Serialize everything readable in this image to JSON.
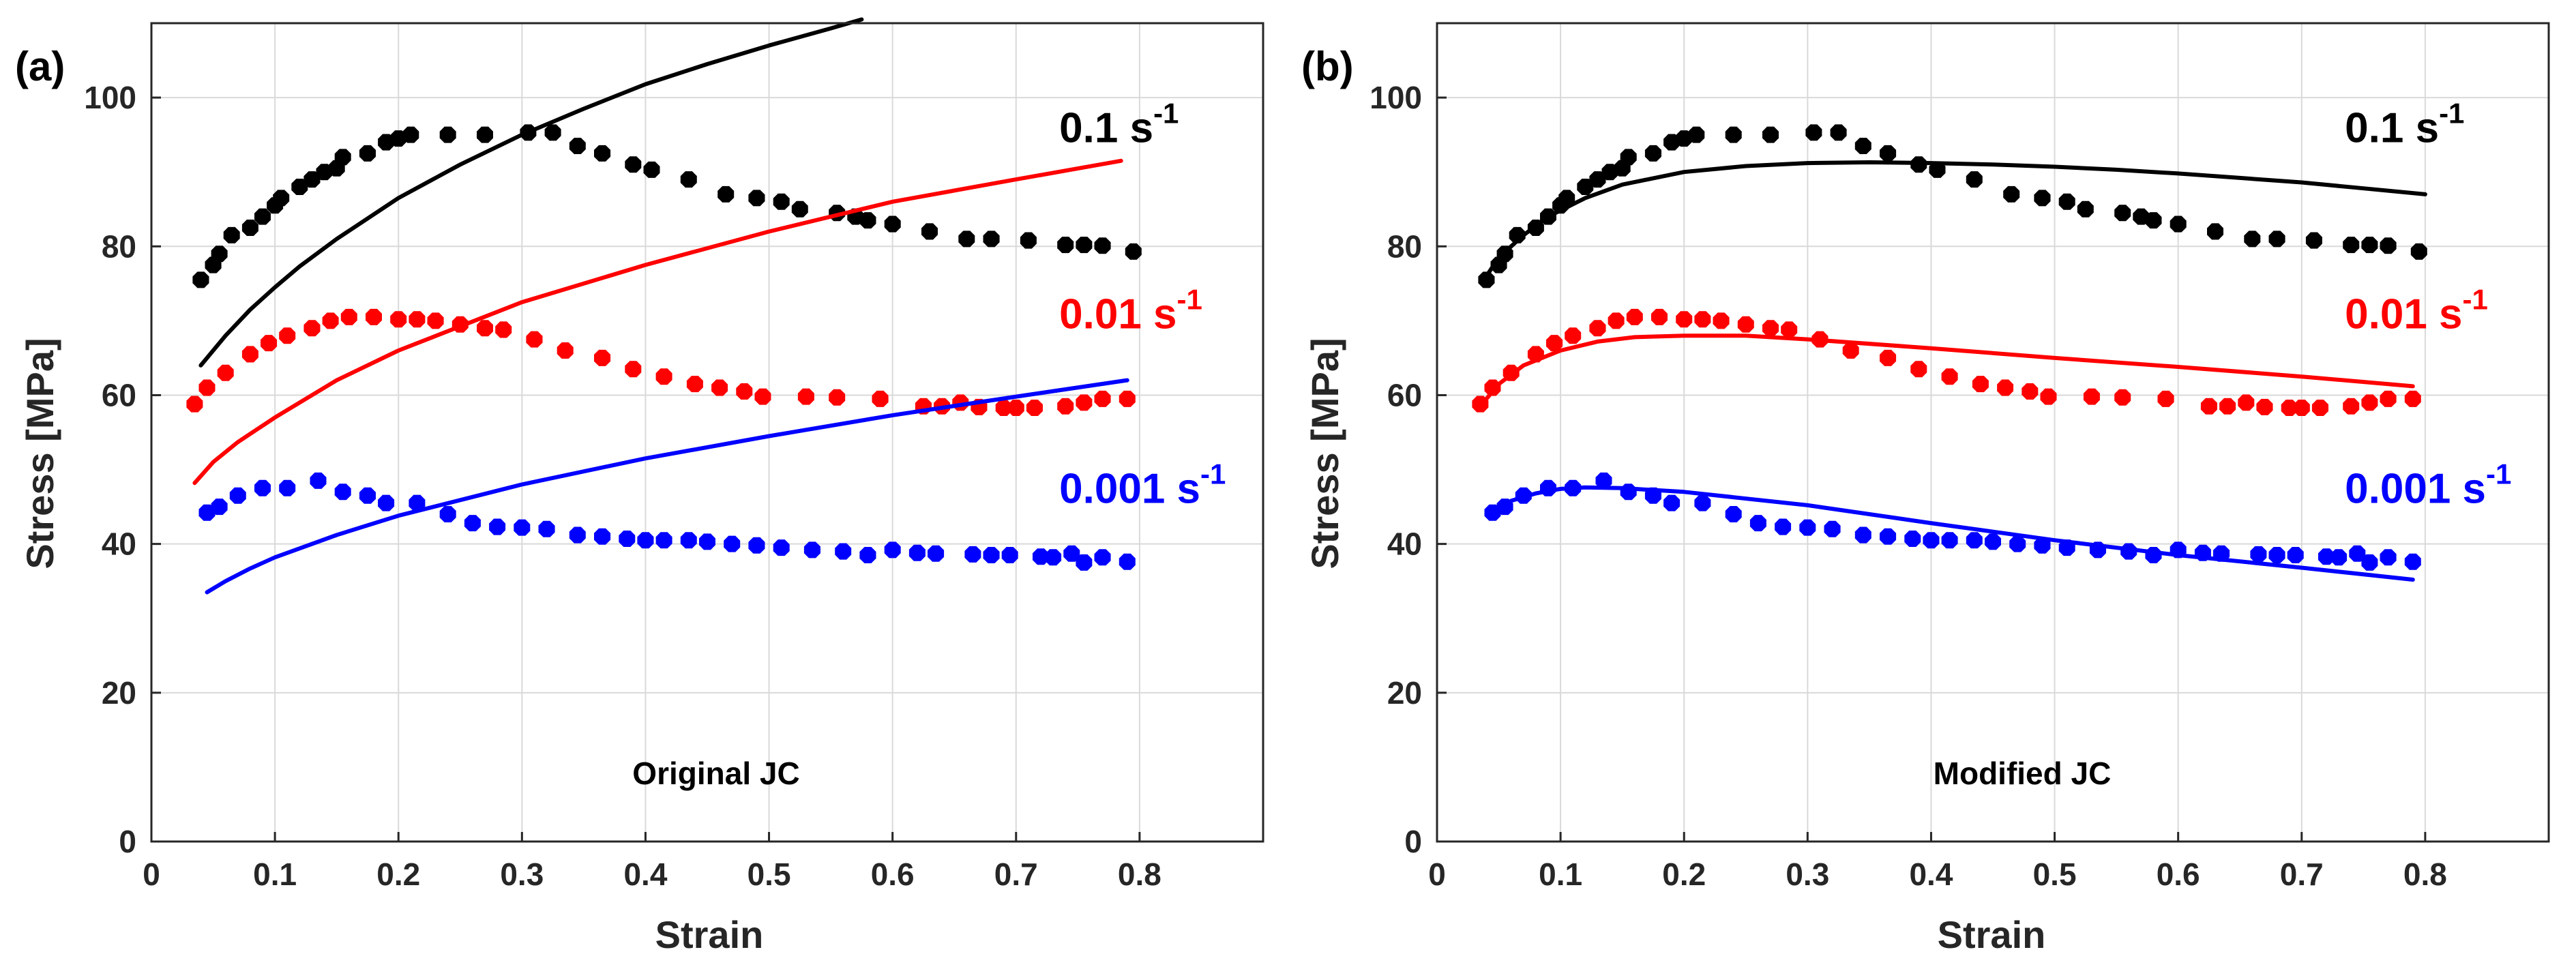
{
  "colors": {
    "background": "#ffffff",
    "axis": "#262626",
    "grid": "#d9d9d9",
    "rate_0_1": "#000000",
    "rate_0_01": "#ff0000",
    "rate_0_001": "#0000ff"
  },
  "chart_data": [
    {
      "type": "scatter",
      "panel_label": "(a)",
      "caption": "Original JC",
      "xlabel": "Strain",
      "ylabel": "Stress [MPa]",
      "xlim": [
        0,
        0.9
      ],
      "ylim": [
        0,
        110
      ],
      "xticks": [
        0,
        0.1,
        0.2,
        0.3,
        0.4,
        0.5,
        0.6,
        0.7,
        0.8
      ],
      "xtick_labels": [
        "0",
        "0.1",
        "0.2",
        "0.3",
        "0.4",
        "0.5",
        "0.6",
        "0.7",
        "0.8"
      ],
      "yticks": [
        0,
        20,
        40,
        60,
        80,
        100
      ],
      "ytick_labels": [
        "0",
        "20",
        "40",
        "60",
        "80",
        "100"
      ],
      "grid": true,
      "series": [
        {
          "name": "0.1 s-1",
          "label_base": "0.1 s",
          "label_exp": "-1",
          "color": "#000000",
          "label_anchor": {
            "x": 0.735,
            "y": 94
          },
          "experimental": {
            "x": [
              0.04,
              0.05,
              0.055,
              0.065,
              0.08,
              0.09,
              0.1,
              0.105,
              0.12,
              0.13,
              0.14,
              0.15,
              0.155,
              0.175,
              0.19,
              0.2,
              0.21,
              0.24,
              0.27,
              0.305,
              0.325,
              0.345,
              0.365,
              0.39,
              0.405,
              0.435,
              0.465,
              0.49,
              0.51,
              0.525,
              0.555,
              0.57,
              0.58,
              0.6,
              0.63,
              0.66,
              0.68,
              0.71,
              0.74,
              0.755,
              0.77,
              0.795
            ],
            "y": [
              75.5,
              77.5,
              79,
              81.5,
              82.5,
              84,
              85.5,
              86.5,
              88,
              89,
              90,
              90.5,
              92,
              92.5,
              94,
              94.5,
              95,
              95,
              95,
              95.3,
              95.3,
              93.5,
              92.5,
              91,
              90.3,
              89,
              87,
              86.5,
              86,
              85,
              84.5,
              84,
              83.5,
              83,
              82,
              81,
              81,
              80.8,
              80.2,
              80.2,
              80.1,
              79.3
            ]
          },
          "model": {
            "x": [
              0.04,
              0.06,
              0.08,
              0.1,
              0.12,
              0.15,
              0.2,
              0.25,
              0.3,
              0.35,
              0.4,
              0.45,
              0.5,
              0.55,
              0.575
            ],
            "y": [
              64,
              68,
              71.5,
              74.5,
              77.3,
              81,
              86.5,
              91,
              95,
              98.5,
              101.8,
              104.5,
              107,
              109.3,
              110.5
            ]
          }
        },
        {
          "name": "0.01 s-1",
          "label_base": "0.01 s",
          "label_exp": "-1",
          "color": "#ff0000",
          "label_anchor": {
            "x": 0.735,
            "y": 69
          },
          "experimental": {
            "x": [
              0.035,
              0.045,
              0.06,
              0.08,
              0.095,
              0.11,
              0.13,
              0.145,
              0.16,
              0.18,
              0.2,
              0.215,
              0.23,
              0.25,
              0.27,
              0.285,
              0.31,
              0.335,
              0.365,
              0.39,
              0.415,
              0.44,
              0.46,
              0.48,
              0.495,
              0.53,
              0.555,
              0.59,
              0.625,
              0.64,
              0.655,
              0.67,
              0.69,
              0.7,
              0.715,
              0.74,
              0.755,
              0.77,
              0.79
            ],
            "y": [
              58.8,
              61,
              63,
              65.5,
              67,
              68,
              69,
              70,
              70.5,
              70.5,
              70.2,
              70.2,
              70,
              69.5,
              69,
              68.8,
              67.5,
              66,
              65,
              63.5,
              62.5,
              61.5,
              61,
              60.5,
              59.8,
              59.8,
              59.7,
              59.5,
              58.5,
              58.5,
              59,
              58.4,
              58.3,
              58.3,
              58.3,
              58.5,
              59,
              59.5,
              59.5
            ]
          },
          "model": {
            "x": [
              0.035,
              0.05,
              0.07,
              0.1,
              0.15,
              0.2,
              0.3,
              0.4,
              0.5,
              0.6,
              0.7,
              0.785
            ],
            "y": [
              48.2,
              51,
              53.7,
              57,
              62,
              66,
              72.5,
              77.5,
              82,
              86,
              89,
              91.5
            ]
          }
        },
        {
          "name": "0.001 s-1",
          "label_base": "0.001 s",
          "label_exp": "-1",
          "color": "#0000ff",
          "label_anchor": {
            "x": 0.735,
            "y": 45.5
          },
          "experimental": {
            "x": [
              0.045,
              0.055,
              0.07,
              0.09,
              0.11,
              0.135,
              0.155,
              0.175,
              0.19,
              0.215,
              0.24,
              0.26,
              0.28,
              0.3,
              0.32,
              0.345,
              0.365,
              0.385,
              0.4,
              0.415,
              0.435,
              0.45,
              0.47,
              0.49,
              0.51,
              0.535,
              0.56,
              0.58,
              0.6,
              0.62,
              0.635,
              0.665,
              0.68,
              0.695,
              0.72,
              0.73,
              0.745,
              0.755,
              0.77,
              0.79
            ],
            "y": [
              44.2,
              45,
              46.5,
              47.5,
              47.5,
              48.5,
              47,
              46.5,
              45.5,
              45.5,
              44,
              42.8,
              42.3,
              42.2,
              42,
              41.2,
              41,
              40.7,
              40.5,
              40.5,
              40.5,
              40.3,
              40,
              39.8,
              39.5,
              39.2,
              39,
              38.5,
              39.2,
              38.8,
              38.7,
              38.6,
              38.5,
              38.5,
              38.3,
              38.2,
              38.7,
              37.5,
              38.2,
              37.6
            ]
          },
          "model": {
            "x": [
              0.045,
              0.06,
              0.08,
              0.1,
              0.15,
              0.2,
              0.3,
              0.4,
              0.5,
              0.6,
              0.7,
              0.79
            ],
            "y": [
              33.5,
              35,
              36.7,
              38.2,
              41.2,
              43.8,
              48,
              51.5,
              54.5,
              57.3,
              59.8,
              62
            ]
          }
        }
      ]
    },
    {
      "type": "scatter",
      "panel_label": "(b)",
      "caption": "Modified JC",
      "xlabel": "Strain",
      "ylabel": "Stress [MPa]",
      "xlim": [
        0,
        0.9
      ],
      "ylim": [
        0,
        110
      ],
      "xticks": [
        0,
        0.1,
        0.2,
        0.3,
        0.4,
        0.5,
        0.6,
        0.7,
        0.8
      ],
      "xtick_labels": [
        "0",
        "0.1",
        "0.2",
        "0.3",
        "0.4",
        "0.5",
        "0.6",
        "0.7",
        "0.8"
      ],
      "yticks": [
        0,
        20,
        40,
        60,
        80,
        100
      ],
      "ytick_labels": [
        "0",
        "20",
        "40",
        "60",
        "80",
        "100"
      ],
      "grid": true,
      "series": [
        {
          "name": "0.1 s-1",
          "label_base": "0.1 s",
          "label_exp": "-1",
          "color": "#000000",
          "label_anchor": {
            "x": 0.735,
            "y": 94
          },
          "experimental": {
            "x": [
              0.04,
              0.05,
              0.055,
              0.065,
              0.08,
              0.09,
              0.1,
              0.105,
              0.12,
              0.13,
              0.14,
              0.15,
              0.155,
              0.175,
              0.19,
              0.2,
              0.21,
              0.24,
              0.27,
              0.305,
              0.325,
              0.345,
              0.365,
              0.39,
              0.405,
              0.435,
              0.465,
              0.49,
              0.51,
              0.525,
              0.555,
              0.57,
              0.58,
              0.6,
              0.63,
              0.66,
              0.68,
              0.71,
              0.74,
              0.755,
              0.77,
              0.795
            ],
            "y": [
              75.5,
              77.5,
              79,
              81.5,
              82.5,
              84,
              85.5,
              86.5,
              88,
              89,
              90,
              90.5,
              92,
              92.5,
              94,
              94.5,
              95,
              95,
              95,
              95.3,
              95.3,
              93.5,
              92.5,
              91,
              90.3,
              89,
              87,
              86.5,
              86,
              85,
              84.5,
              84,
              83.5,
              83,
              82,
              81,
              81,
              80.8,
              80.2,
              80.2,
              80.1,
              79.3
            ]
          },
          "model": {
            "x": [
              0.04,
              0.05,
              0.07,
              0.09,
              0.12,
              0.15,
              0.2,
              0.25,
              0.3,
              0.35,
              0.4,
              0.45,
              0.5,
              0.55,
              0.6,
              0.65,
              0.7,
              0.75,
              0.8
            ],
            "y": [
              76,
              78.5,
              81.5,
              84,
              86.5,
              88.3,
              90,
              90.8,
              91.2,
              91.3,
              91.2,
              91,
              90.7,
              90.3,
              89.8,
              89.2,
              88.6,
              87.8,
              87
            ]
          }
        },
        {
          "name": "0.01 s-1",
          "label_base": "0.01 s",
          "label_exp": "-1",
          "color": "#ff0000",
          "label_anchor": {
            "x": 0.735,
            "y": 69
          },
          "experimental": {
            "x": [
              0.035,
              0.045,
              0.06,
              0.08,
              0.095,
              0.11,
              0.13,
              0.145,
              0.16,
              0.18,
              0.2,
              0.215,
              0.23,
              0.25,
              0.27,
              0.285,
              0.31,
              0.335,
              0.365,
              0.39,
              0.415,
              0.44,
              0.46,
              0.48,
              0.495,
              0.53,
              0.555,
              0.59,
              0.625,
              0.64,
              0.655,
              0.67,
              0.69,
              0.7,
              0.715,
              0.74,
              0.755,
              0.77,
              0.79
            ],
            "y": [
              58.8,
              61,
              63,
              65.5,
              67,
              68,
              69,
              70,
              70.5,
              70.5,
              70.2,
              70.2,
              70,
              69.5,
              69,
              68.8,
              67.5,
              66,
              65,
              63.5,
              62.5,
              61.5,
              61,
              60.5,
              59.8,
              59.8,
              59.7,
              59.5,
              58.5,
              58.5,
              59,
              58.4,
              58.3,
              58.3,
              58.3,
              58.5,
              59,
              59.5,
              59.5
            ]
          },
          "model": {
            "x": [
              0.04,
              0.05,
              0.07,
              0.1,
              0.13,
              0.16,
              0.2,
              0.25,
              0.3,
              0.4,
              0.5,
              0.6,
              0.7,
              0.79
            ],
            "y": [
              59.5,
              61.5,
              64,
              66,
              67.2,
              67.8,
              68,
              68,
              67.5,
              66.3,
              65,
              63.8,
              62.5,
              61.2
            ]
          }
        },
        {
          "name": "0.001 s-1",
          "label_base": "0.001 s",
          "label_exp": "-1",
          "color": "#0000ff",
          "label_anchor": {
            "x": 0.735,
            "y": 45.5
          },
          "experimental": {
            "x": [
              0.045,
              0.055,
              0.07,
              0.09,
              0.11,
              0.135,
              0.155,
              0.175,
              0.19,
              0.215,
              0.24,
              0.26,
              0.28,
              0.3,
              0.32,
              0.345,
              0.365,
              0.385,
              0.4,
              0.415,
              0.435,
              0.45,
              0.47,
              0.49,
              0.51,
              0.535,
              0.56,
              0.58,
              0.6,
              0.62,
              0.635,
              0.665,
              0.68,
              0.695,
              0.72,
              0.73,
              0.745,
              0.755,
              0.77,
              0.79
            ],
            "y": [
              44.2,
              45,
              46.5,
              47.5,
              47.5,
              48.5,
              47,
              46.5,
              45.5,
              45.5,
              44,
              42.8,
              42.3,
              42.2,
              42,
              41.2,
              41,
              40.7,
              40.5,
              40.5,
              40.5,
              40.3,
              40,
              39.8,
              39.5,
              39.2,
              39,
              38.5,
              39.2,
              38.8,
              38.7,
              38.6,
              38.5,
              38.5,
              38.3,
              38.2,
              38.7,
              37.5,
              38.2,
              37.6
            ]
          },
          "model": {
            "x": [
              0.045,
              0.06,
              0.08,
              0.1,
              0.12,
              0.15,
              0.2,
              0.3,
              0.4,
              0.5,
              0.6,
              0.7,
              0.79
            ],
            "y": [
              44.5,
              45.8,
              46.8,
              47.4,
              47.6,
              47.5,
              47,
              45.2,
              42.8,
              40.5,
              38.5,
              36.8,
              35.2
            ]
          }
        }
      ]
    }
  ]
}
